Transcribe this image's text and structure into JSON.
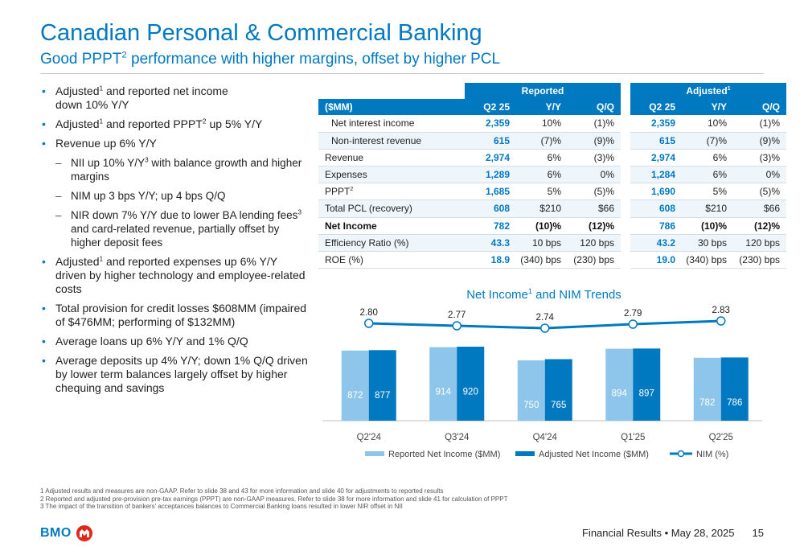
{
  "header": {
    "title": "Canadian Personal & Commercial Banking",
    "subtitle_pre": "Good PPPT",
    "subtitle_sup": "2",
    "subtitle_post": " performance with higher margins, offset by higher PCL"
  },
  "bullets": {
    "b1_a": "Adjusted",
    "b1_sup": "1",
    "b1_b": " and reported net income",
    "b1_c": "down 10% Y/Y",
    "b2_a": "Adjusted",
    "b2_sup1": "1",
    "b2_b": " and reported  PPPT",
    "b2_sup2": "2",
    "b2_c": " up 5% Y/Y",
    "b3": "Revenue up 6% Y/Y",
    "s1_a": "NII up 10% Y/Y",
    "s1_sup": "3",
    "s1_b": " with balance growth and higher margins",
    "s2": "NIM up 3 bps Y/Y; up 4 bps Q/Q",
    "s3_a": "NIR down 7% Y/Y due to lower BA lending fees",
    "s3_sup": "3",
    "s3_b": "  and card-related revenue, partially offset by higher deposit fees",
    "b4_a": "Adjusted",
    "b4_sup": "1",
    "b4_b": " and reported expenses up 6% Y/Y driven by higher technology and employee-related costs",
    "b5": "Total provision for credit losses $608MM (impaired of $476MM; performing of $132MM)",
    "b6": "Average loans up 6% Y/Y and 1% Q/Q",
    "b7": "Average deposits up 4% Y/Y; down 1% Q/Q driven by lower term balances largely offset by higher chequing and savings"
  },
  "table": {
    "group_reported": "Reported",
    "group_adjusted": "Adjusted",
    "group_adjusted_sup": "1",
    "col_label": "($MM)",
    "cols": [
      "Q2 25",
      "Y/Y",
      "Q/Q"
    ],
    "rows": [
      {
        "label": "Net interest income",
        "sup": "",
        "r": [
          "2,359",
          "10%",
          "(1)%"
        ],
        "a": [
          "2,359",
          "10%",
          "(1)%"
        ]
      },
      {
        "label": "Non-interest revenue",
        "sup": "",
        "r": [
          "615",
          "(7)%",
          "(9)%"
        ],
        "a": [
          "615",
          "(7)%",
          "(9)%"
        ]
      },
      {
        "label": "Revenue",
        "sup": "",
        "r": [
          "2,974",
          "6%",
          "(3)%"
        ],
        "a": [
          "2,974",
          "6%",
          "(3)%"
        ]
      },
      {
        "label": "Expenses",
        "sup": "",
        "r": [
          "1,289",
          "6%",
          "0%"
        ],
        "a": [
          "1,284",
          "6%",
          "0%"
        ]
      },
      {
        "label": "PPPT",
        "sup": "2",
        "r": [
          "1,685",
          "5%",
          "(5)%"
        ],
        "a": [
          "1,690",
          "5%",
          "(5)%"
        ]
      },
      {
        "label": "Total PCL (recovery)",
        "sup": "",
        "r": [
          "608",
          "$210",
          "$66"
        ],
        "a": [
          "608",
          "$210",
          "$66"
        ]
      },
      {
        "label": "Net Income",
        "sup": "",
        "r": [
          "782",
          "(10)%",
          "(12)%"
        ],
        "a": [
          "786",
          "(10)%",
          "(12)%"
        ]
      },
      {
        "label": "Efficiency Ratio (%)",
        "sup": "",
        "r": [
          "43.3",
          "10 bps",
          "120 bps"
        ],
        "a": [
          "43.2",
          "30 bps",
          "120 bps"
        ]
      },
      {
        "label": "ROE (%)",
        "sup": "",
        "r": [
          "18.9",
          "(340) bps",
          "(230) bps"
        ],
        "a": [
          "19.0",
          "(340) bps",
          "(230) bps"
        ]
      }
    ]
  },
  "chart_title_pre": "Net Income",
  "chart_title_sup": "1",
  "chart_title_post": " and NIM Trends",
  "chart_data": {
    "type": "bar",
    "categories": [
      "Q2'24",
      "Q3'24",
      "Q4'24",
      "Q1'25",
      "Q2'25"
    ],
    "series": [
      {
        "name": "Reported Net Income ($MM)",
        "values": [
          872,
          914,
          750,
          894,
          782
        ],
        "color": "#8DC6EA"
      },
      {
        "name": "Adjusted Net Income ($MM)",
        "values": [
          877,
          920,
          765,
          897,
          786
        ],
        "color": "#0079C1"
      },
      {
        "name": "NIM (%)",
        "type": "line",
        "values": [
          2.8,
          2.77,
          2.74,
          2.79,
          2.83
        ],
        "color": "#0079C1"
      }
    ],
    "legend": "bottom"
  },
  "footnotes": [
    "1  Adjusted results and measures are non-GAAP. Refer to slide 38 and 43 for more information and slide 40 for adjustments to reported results",
    "2  Reported and adjusted pre-provision pre-tax earnings (PPPT) are non-GAAP measures. Refer to slide 38 for more information and slide 41 for calculation of PPPT",
    "3  The impact of the transition of bankers' acceptances balances to Commercial Banking loans resulted in lower NIR offset in NII"
  ],
  "footer": {
    "logo": "BMO",
    "logo_icon": "bmo-roundel-icon",
    "text": "Financial Results • May 28, 2025",
    "page": "15"
  }
}
